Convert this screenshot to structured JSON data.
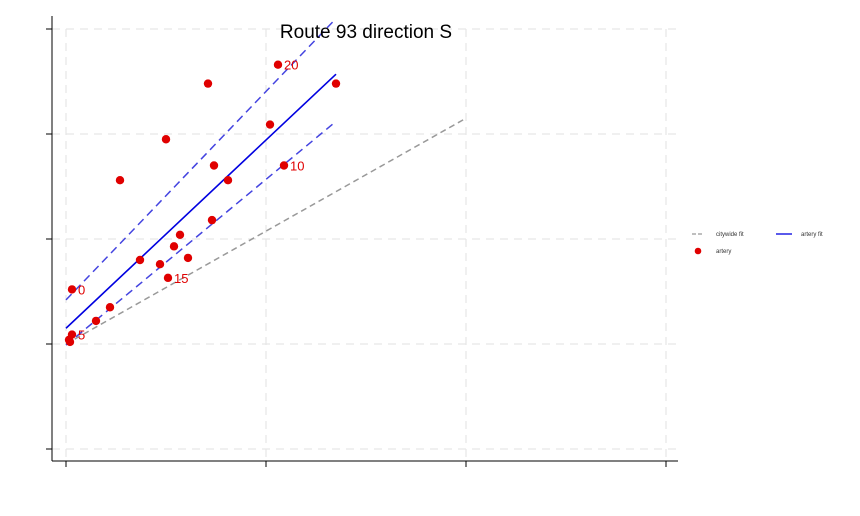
{
  "chart_data": {
    "type": "scatter",
    "title": "Route 93 direction S",
    "xlabel": "",
    "ylabel": "",
    "xlim": [
      0,
      300
    ],
    "ylim": [
      0,
      4
    ],
    "xticks": [
      0,
      100,
      200,
      300
    ],
    "yticks": [
      0,
      1,
      2,
      3,
      4
    ],
    "grid": true,
    "legend_position": "right",
    "colors": {
      "points": "#e00000",
      "artery_fit": "#0000e0",
      "artery_ci": "#4444e0",
      "citywide_fit": "#999999"
    },
    "series": [
      {
        "name": "artery",
        "points": [
          {
            "x": 3,
            "y": 1.52,
            "label": "0"
          },
          {
            "x": 3,
            "y": 1.09,
            "label": "5"
          },
          {
            "x": 1.5,
            "y": 1.04
          },
          {
            "x": 2,
            "y": 1.02
          },
          {
            "x": 15,
            "y": 1.22
          },
          {
            "x": 22,
            "y": 1.35
          },
          {
            "x": 27,
            "y": 2.56
          },
          {
            "x": 37,
            "y": 1.8
          },
          {
            "x": 47,
            "y": 1.76
          },
          {
            "x": 50,
            "y": 2.95
          },
          {
            "x": 51,
            "y": 1.63,
            "label": "15"
          },
          {
            "x": 54,
            "y": 1.93
          },
          {
            "x": 57,
            "y": 2.04
          },
          {
            "x": 61,
            "y": 1.82
          },
          {
            "x": 71,
            "y": 3.48
          },
          {
            "x": 73,
            "y": 2.18
          },
          {
            "x": 74,
            "y": 2.7
          },
          {
            "x": 81,
            "y": 2.56
          },
          {
            "x": 102,
            "y": 3.09
          },
          {
            "x": 106,
            "y": 3.66,
            "label": "20"
          },
          {
            "x": 109,
            "y": 2.7,
            "label": "10"
          },
          {
            "x": 135,
            "y": 3.48
          }
        ]
      }
    ],
    "lines": [
      {
        "name": "citywide fit",
        "style": "dashed",
        "x": [
          0,
          200
        ],
        "y": [
          1.0,
          3.15
        ]
      },
      {
        "name": "artery fit",
        "style": "solid",
        "x": [
          0,
          135
        ],
        "y": [
          1.15,
          3.57
        ]
      },
      {
        "style": "dashed",
        "x": [
          0,
          135
        ],
        "y": [
          1.42,
          4.1
        ]
      },
      {
        "style": "dashed",
        "x": [
          0,
          135
        ],
        "y": [
          0.99,
          3.12
        ]
      }
    ],
    "legend": [
      {
        "label": "citywide fit",
        "kind": "dashed-line",
        "color": "#999999"
      },
      {
        "label": "artery fit",
        "kind": "solid-line",
        "color": "#0000e0"
      },
      {
        "label": "artery",
        "kind": "marker",
        "color": "#e00000"
      }
    ]
  }
}
